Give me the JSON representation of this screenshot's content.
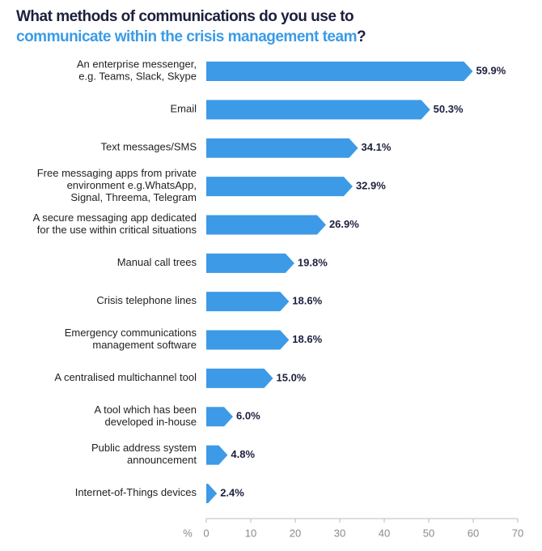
{
  "title": {
    "line1": "What methods of communications do you use to",
    "line2_highlight": "communicate within the crisis management team",
    "line2_end": "?"
  },
  "colors": {
    "bar": "#3d9ae6",
    "title_dark": "#1d1f3e",
    "title_highlight": "#3b9be6",
    "axis": "#bbbbbb"
  },
  "chart_data": {
    "type": "bar",
    "orientation": "horizontal",
    "title": "What methods of communications do you use to communicate within the crisis management team?",
    "categories": [
      [
        "An enterprise messenger,",
        "e.g. Teams, Slack, Skype"
      ],
      [
        "Email"
      ],
      [
        "Text messages/SMS"
      ],
      [
        "Free messaging apps from private",
        "environment e.g.WhatsApp,",
        "Signal, Threema, Telegram"
      ],
      [
        "A secure messaging app dedicated",
        "for the use within critical situations"
      ],
      [
        "Manual call trees"
      ],
      [
        "Crisis telephone lines"
      ],
      [
        "Emergency communications",
        "management software"
      ],
      [
        "A centralised multichannel tool"
      ],
      [
        "A tool which has been",
        "developed in-house"
      ],
      [
        "Public address system",
        "announcement"
      ],
      [
        "Internet-of-Things devices"
      ]
    ],
    "values": [
      59.9,
      50.3,
      34.1,
      32.9,
      26.9,
      19.8,
      18.6,
      18.6,
      15.0,
      6.0,
      4.8,
      2.4
    ],
    "value_labels": [
      "59.9%",
      "50.3%",
      "34.1%",
      "32.9%",
      "26.9%",
      "19.8%",
      "18.6%",
      "18.6%",
      "15.0%",
      "6.0%",
      "4.8%",
      "2.4%"
    ],
    "xlim": [
      0,
      70
    ],
    "xticks": [
      0,
      10,
      20,
      30,
      40,
      50,
      60,
      70
    ],
    "xtick_labels": [
      "0",
      "10",
      "20",
      "30",
      "40",
      "50",
      "60",
      "70"
    ],
    "x_unit_label": "%",
    "grid": false
  }
}
